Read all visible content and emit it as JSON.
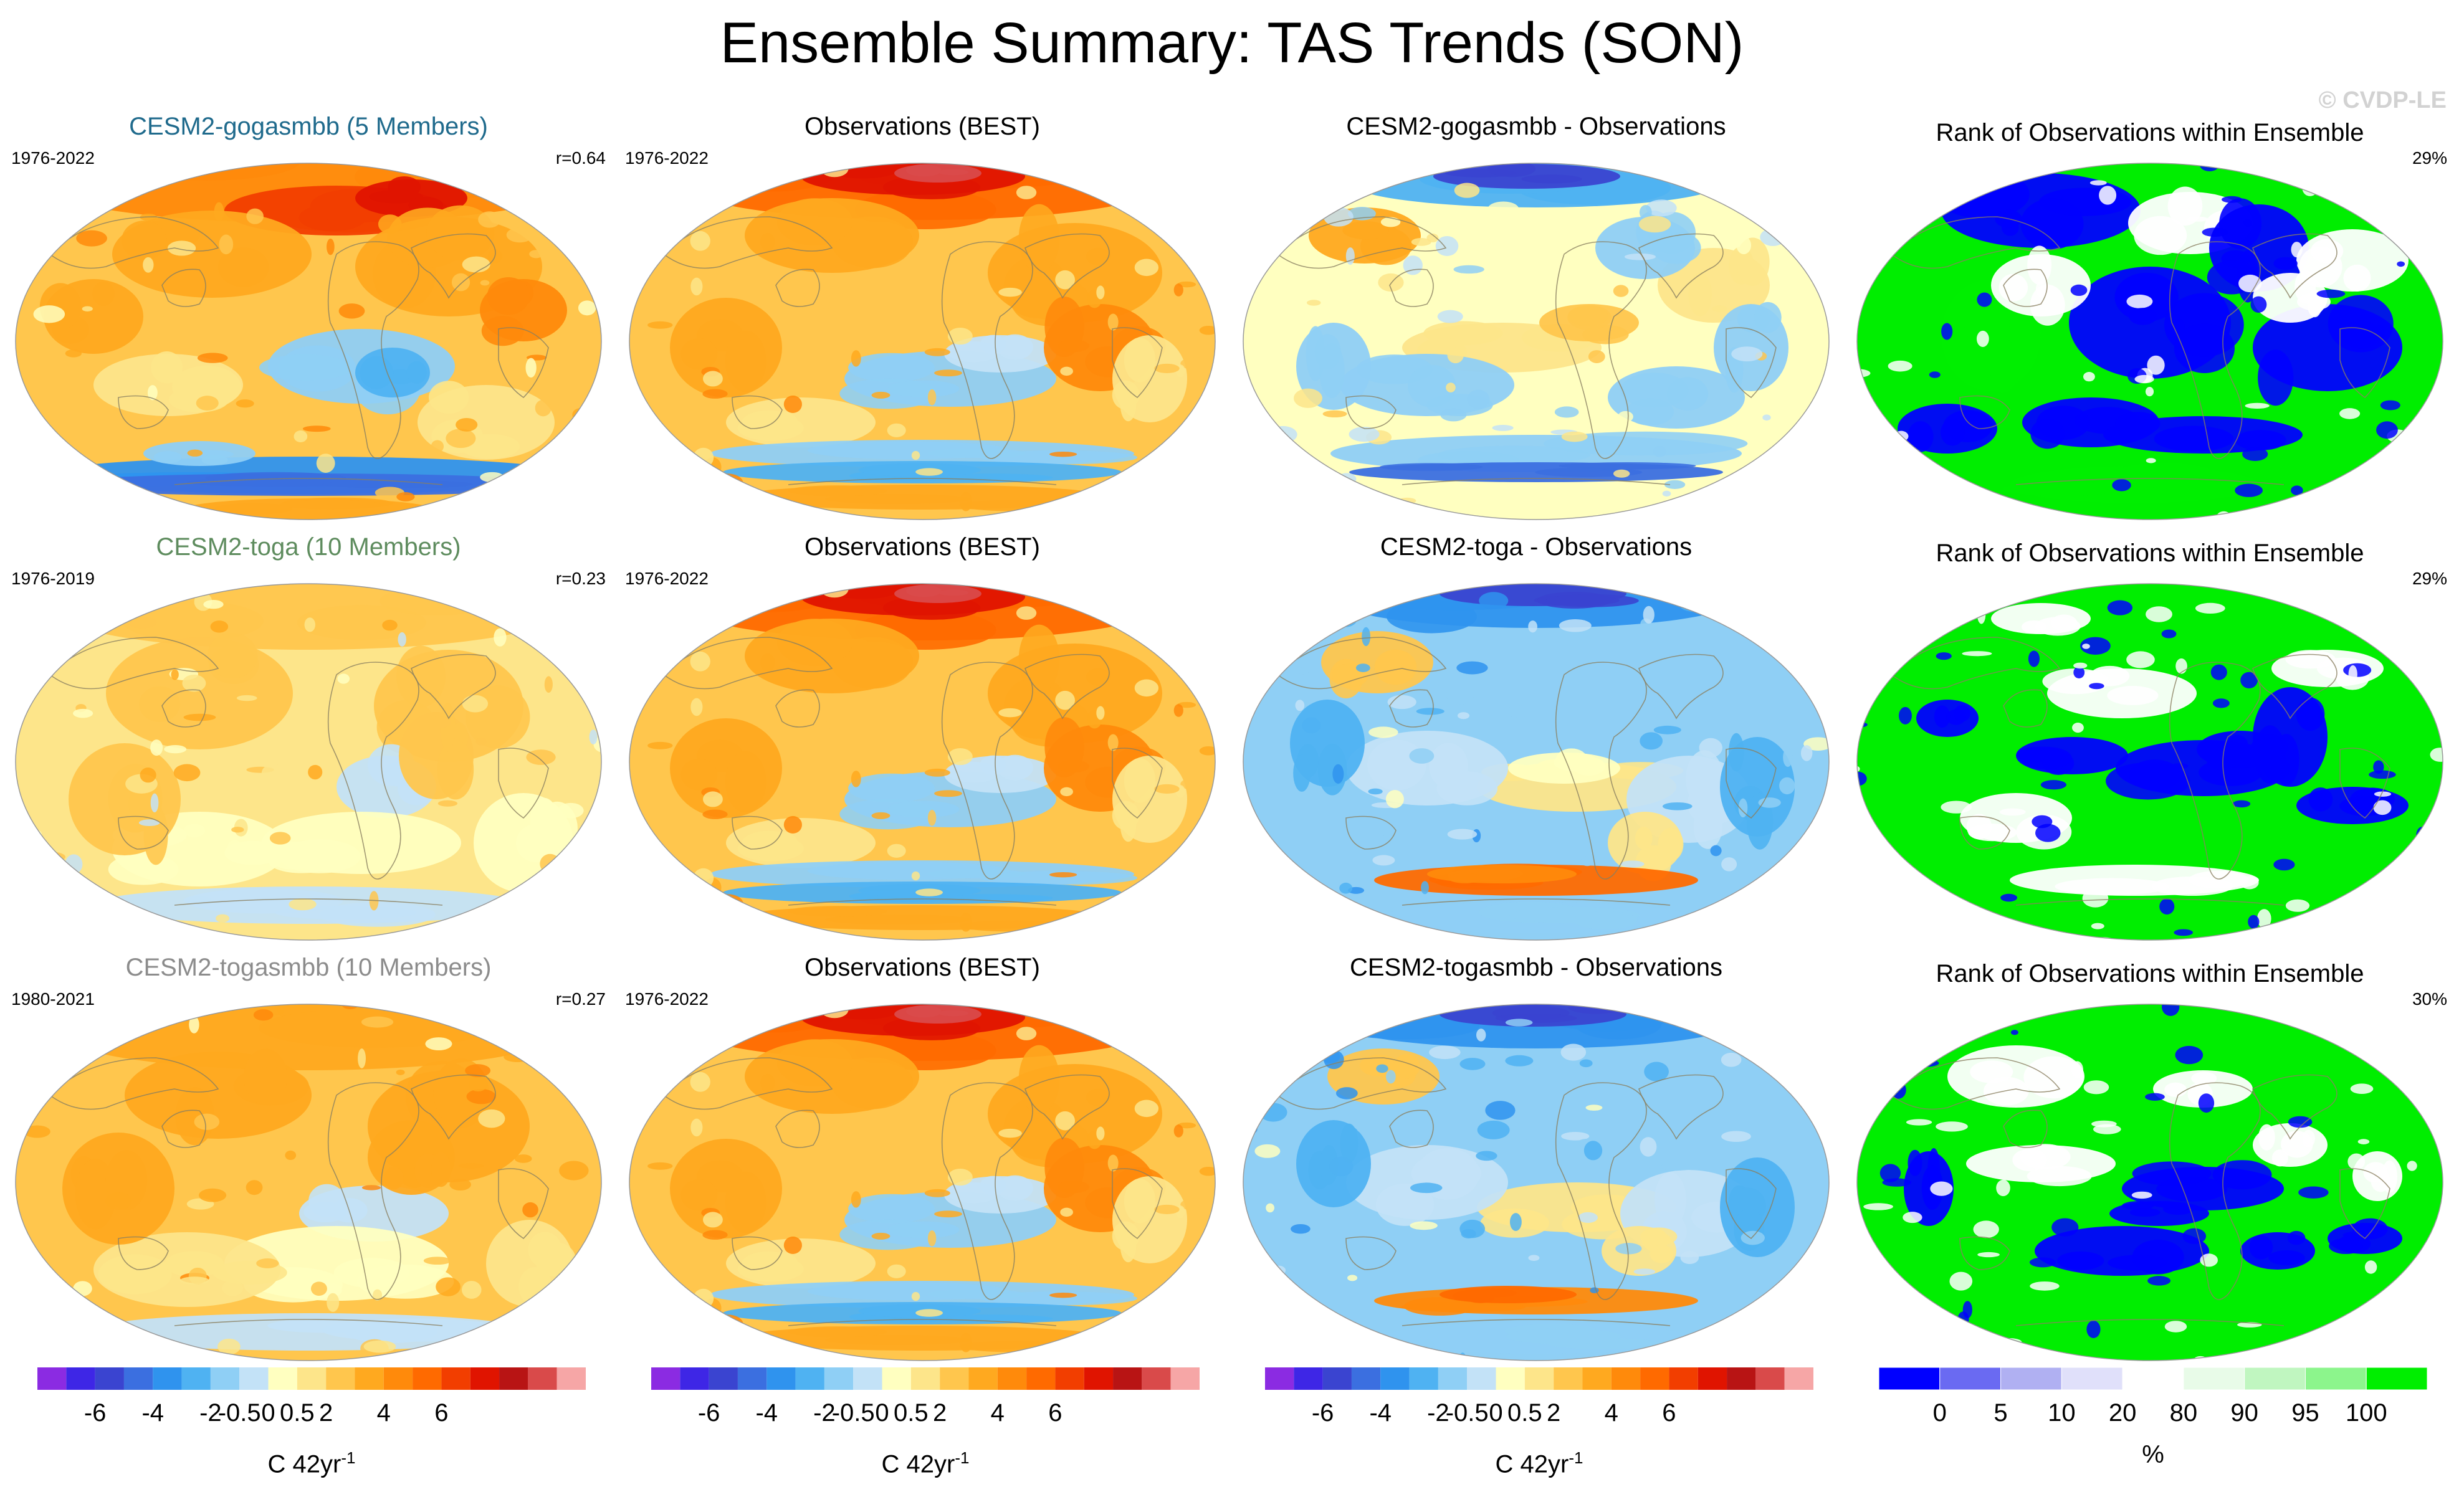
{
  "title": "Ensemble Summary: TAS Trends (SON)",
  "watermark": "© CVDP-LE",
  "colors": {
    "trend": [
      "#8b2be2",
      "#3e26e6",
      "#3a44d0",
      "#3b6fe0",
      "#2f93ee",
      "#4fb2f2",
      "#8fcff5",
      "#c3e2f7",
      "#ffffc0",
      "#fde58a",
      "#ffc64d",
      "#ffa91f",
      "#ff8a0b",
      "#ff6a00",
      "#f23e00",
      "#e01400",
      "#b81414",
      "#d94a4a",
      "#f6a6a6"
    ],
    "rank": [
      "#0000ff",
      "#6a6af2",
      "#b0b0f2",
      "#e0e0fa",
      "#ffffff",
      "#e8fbe8",
      "#c0f6c0",
      "#8cf58c",
      "#00ee00"
    ],
    "land_outline": "#8a7f60",
    "model_title_colors": [
      "#1f6a8c",
      "#5e8c5e",
      "#8c8c8c"
    ]
  },
  "rows": [
    {
      "model": {
        "title": "CESM2-gogasmbb (5 Members)",
        "years": "1976-2022",
        "stat": "r=0.64"
      },
      "obs": {
        "title": "Observations (BEST)",
        "years": "1976-2022"
      },
      "diff": {
        "title": "CESM2-gogasmbb - Observations"
      },
      "rank": {
        "title": "Rank of Observations within Ensemble",
        "stat": "29%"
      }
    },
    {
      "model": {
        "title": "CESM2-toga (10 Members)",
        "years": "1976-2019",
        "stat": "r=0.23"
      },
      "obs": {
        "title": "Observations (BEST)",
        "years": "1976-2022"
      },
      "diff": {
        "title": "CESM2-toga - Observations"
      },
      "rank": {
        "title": "Rank of Observations within Ensemble",
        "stat": "29%"
      }
    },
    {
      "model": {
        "title": "CESM2-togasmbb (10 Members)",
        "years": "1980-2021",
        "stat": "r=0.27"
      },
      "obs": {
        "title": "Observations (BEST)",
        "years": "1976-2022"
      },
      "diff": {
        "title": "CESM2-togasmbb - Observations"
      },
      "rank": {
        "title": "Rank of Observations within Ensemble",
        "stat": "30%"
      }
    }
  ],
  "colorbars": {
    "trend": {
      "labels": [
        "-6",
        "-4",
        "-2",
        "-0.5",
        "0",
        "0.5",
        "2",
        "4",
        "6"
      ],
      "label": "C 42yr",
      "label_exp": "-1"
    },
    "rank": {
      "labels": [
        "0",
        "5",
        "10",
        "20",
        "80",
        "90",
        "95",
        "100"
      ],
      "label": "%"
    }
  },
  "chart_data": {
    "type": "heatmap",
    "title": "Ensemble Summary: TAS Trends (SON)",
    "variable": "TAS trend",
    "units": "C 42yr-1",
    "trend_levels": [
      -6,
      -5,
      -4,
      -3,
      -2,
      -1,
      -0.5,
      -0.25,
      0,
      0.25,
      0.5,
      1,
      2,
      3,
      4,
      5,
      6,
      7
    ],
    "rank_levels": [
      0,
      5,
      10,
      20,
      80,
      90,
      95,
      100
    ],
    "panels": [
      {
        "row": 1,
        "col": "model",
        "name": "CESM2-gogasmbb (5 Members)",
        "period": "1976-2022",
        "pattern_correlation": 0.64
      },
      {
        "row": 1,
        "col": "obs",
        "name": "Observations (BEST)",
        "period": "1976-2022"
      },
      {
        "row": 1,
        "col": "difference",
        "name": "CESM2-gogasmbb - Observations"
      },
      {
        "row": 1,
        "col": "rank",
        "name": "Rank of Observations within Ensemble",
        "percent_area": 29
      },
      {
        "row": 2,
        "col": "model",
        "name": "CESM2-toga (10 Members)",
        "period": "1976-2019",
        "pattern_correlation": 0.23
      },
      {
        "row": 2,
        "col": "obs",
        "name": "Observations (BEST)",
        "period": "1976-2022"
      },
      {
        "row": 2,
        "col": "difference",
        "name": "CESM2-toga - Observations"
      },
      {
        "row": 2,
        "col": "rank",
        "name": "Rank of Observations within Ensemble",
        "percent_area": 29
      },
      {
        "row": 3,
        "col": "model",
        "name": "CESM2-togasmbb (10 Members)",
        "period": "1980-2021",
        "pattern_correlation": 0.27
      },
      {
        "row": 3,
        "col": "obs",
        "name": "Observations (BEST)",
        "period": "1976-2022"
      },
      {
        "row": 3,
        "col": "difference",
        "name": "CESM2-togasmbb - Observations"
      },
      {
        "row": 3,
        "col": "rank",
        "name": "Rank of Observations within Ensemble",
        "percent_area": 30
      }
    ]
  }
}
